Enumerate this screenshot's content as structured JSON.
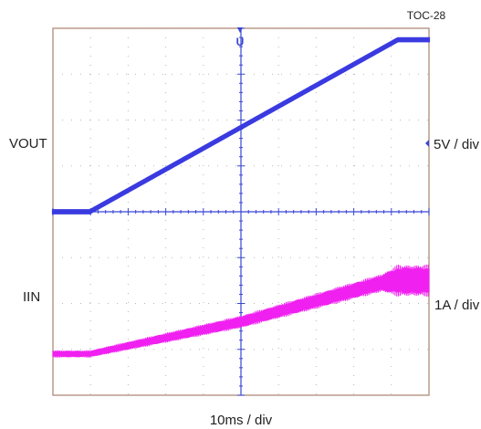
{
  "chart_data": {
    "type": "line",
    "figure_id": "TOC-28",
    "grid": true,
    "time_scale": "10ms / div",
    "divisions": {
      "x": 10,
      "y": 8
    },
    "x_range_div": [
      0,
      10
    ],
    "trigger_marker": "trigger-arrow",
    "colors": {
      "frame": "#b08a7a",
      "grid_dots": "#b7b7b7",
      "axis": "#3a46d6"
    },
    "series": [
      {
        "name": "VOUT",
        "scale": "5V / div",
        "color": "#3a3ae0",
        "y_unit": "divisions above center",
        "noise_div": 0.035,
        "x": [
          0,
          0.98,
          9.17,
          10
        ],
        "y": [
          0.0,
          0.0,
          3.75,
          3.75
        ]
      },
      {
        "name": "IIN",
        "scale": "1A / div",
        "color": "#f020f0",
        "y_unit": "divisions above center",
        "x": [
          0,
          0.98,
          5.0,
          8.75,
          9.17,
          10
        ],
        "y": [
          -3.1,
          -3.1,
          -2.4,
          -1.55,
          -1.5,
          -1.5
        ],
        "ripple_div": [
          0.08,
          0.08,
          0.14,
          0.2,
          0.35,
          0.35
        ]
      }
    ]
  }
}
